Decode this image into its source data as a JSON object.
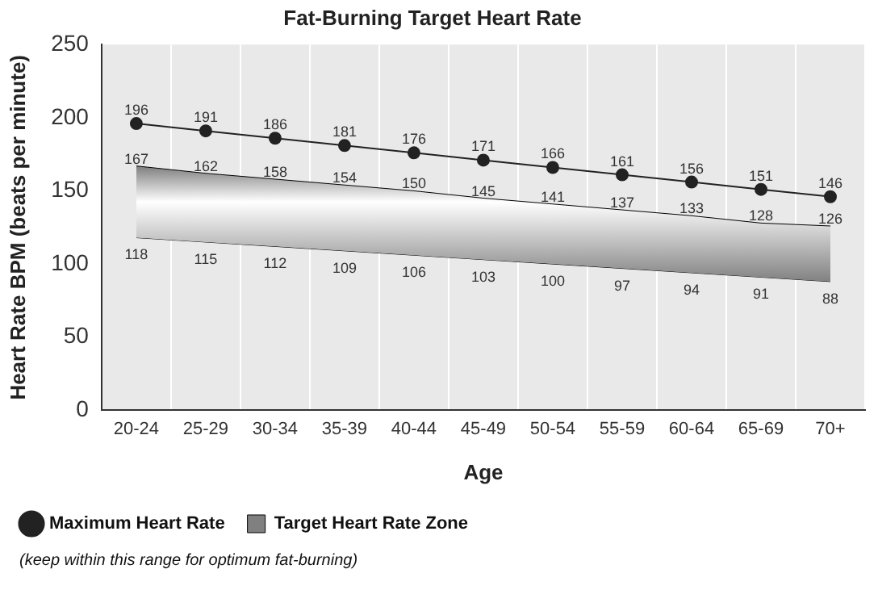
{
  "chart_data": {
    "type": "line",
    "title": "Fat-Burning Target Heart Rate",
    "xlabel": "Age",
    "ylabel": "Heart Rate BPM (beats per minute)",
    "categories": [
      "20-24",
      "25-29",
      "30-34",
      "35-39",
      "40-44",
      "45-49",
      "50-54",
      "55-59",
      "60-64",
      "65-69",
      "70+"
    ],
    "series": [
      {
        "name": "Maximum Heart Rate",
        "type": "line",
        "color": "#222222",
        "marker": "circle",
        "values": [
          196,
          191,
          186,
          181,
          176,
          171,
          166,
          161,
          156,
          151,
          146
        ]
      },
      {
        "name": "Target Heart Rate Zone",
        "type": "area",
        "color": "#808080",
        "values": [
          167,
          162,
          158,
          154,
          150,
          145,
          141,
          137,
          133,
          128,
          126
        ]
      },
      {
        "type": "line",
        "color": "#000000",
        "marker": "none",
        "values": [
          118,
          115,
          112,
          109,
          106,
          103,
          100,
          97,
          94,
          91,
          88
        ]
      }
    ],
    "ylim": [
      0,
      250
    ],
    "yticks": [
      0,
      50,
      100,
      150,
      200,
      250
    ],
    "grid": "x",
    "legend": "bottom left",
    "data_labels": true,
    "annotations": [
      "(keep within this range for optimum fat-burning)"
    ]
  }
}
